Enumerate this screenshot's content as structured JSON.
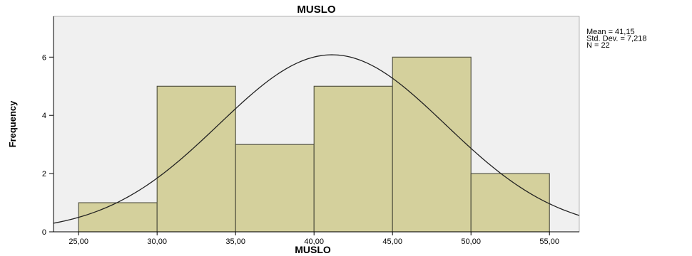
{
  "chart_data": {
    "type": "bar",
    "subtype": "histogram",
    "title": "MUSLO",
    "xlabel": "MUSLO",
    "ylabel": "Frequency",
    "bin_edges": [
      25,
      30,
      35,
      40,
      45,
      50,
      55
    ],
    "values": [
      1,
      5,
      3,
      5,
      6,
      2
    ],
    "x_tick_labels": [
      "25,00",
      "30,00",
      "35,00",
      "40,00",
      "45,00",
      "50,00",
      "55,00"
    ],
    "y_ticks": [
      0,
      2,
      4,
      6
    ],
    "y_tick_labels": [
      "0",
      "2",
      "4",
      "6"
    ],
    "xlim": [
      23.4,
      56.9
    ],
    "ylim": [
      0,
      7.4
    ],
    "normal_curve": {
      "mean": 41.15,
      "std_dev": 7.218,
      "n": 22
    },
    "stats_lines": [
      "Mean = 41,15",
      "Std. Dev. = 7,218",
      "N = 22"
    ],
    "legend_placement": "top-right",
    "grid": false,
    "colors": {
      "bar_fill": "#d4d09c",
      "bar_stroke": "#4a4a3a",
      "plot_background": "#f0f0f0",
      "curve": "#222222",
      "axis": "#000000"
    }
  }
}
